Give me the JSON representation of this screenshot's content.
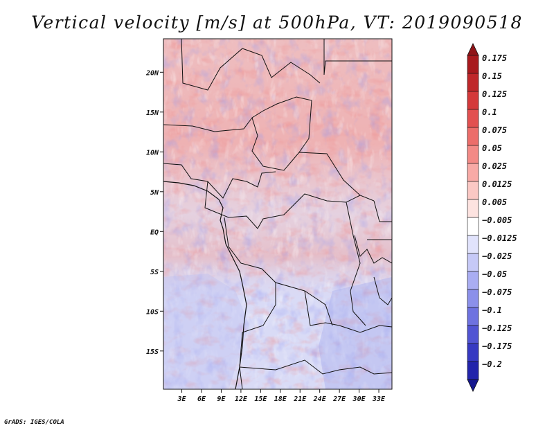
{
  "chart_data": {
    "type": "heatmap",
    "title": "Vertical velocity [m/s] at 500hPa, VT: 2019090518",
    "variable": "Vertical velocity",
    "units": "m/s",
    "level": "500hPa",
    "valid_time": "2019090518",
    "x_axis": {
      "ticks": [
        {
          "label": "3E",
          "value": 3
        },
        {
          "label": "6E",
          "value": 6
        },
        {
          "label": "9E",
          "value": 9
        },
        {
          "label": "12E",
          "value": 12
        },
        {
          "label": "15E",
          "value": 15
        },
        {
          "label": "18E",
          "value": 18
        },
        {
          "label": "21E",
          "value": 21
        },
        {
          "label": "24E",
          "value": 24
        },
        {
          "label": "27E",
          "value": 27
        },
        {
          "label": "30E",
          "value": 30
        },
        {
          "label": "33E",
          "value": 33
        }
      ],
      "range": [
        0.2,
        35.0
      ]
    },
    "y_axis": {
      "ticks": [
        {
          "label": "20N",
          "value": 20
        },
        {
          "label": "15N",
          "value": 15
        },
        {
          "label": "10N",
          "value": 10
        },
        {
          "label": "5N",
          "value": 5
        },
        {
          "label": "EQ",
          "value": 0
        },
        {
          "label": "5S",
          "value": -5
        },
        {
          "label": "10S",
          "value": -10
        },
        {
          "label": "15S",
          "value": -15
        }
      ],
      "range": [
        -19.8,
        24.2
      ]
    },
    "colorbar": {
      "levels": [
        {
          "label": "0.175",
          "color": "#a8191d"
        },
        {
          "label": "0.15",
          "color": "#bf272a"
        },
        {
          "label": "0.125",
          "color": "#d4393a"
        },
        {
          "label": "0.1",
          "color": "#e25050"
        },
        {
          "label": "0.075",
          "color": "#ec6d6a"
        },
        {
          "label": "0.05",
          "color": "#f38a86"
        },
        {
          "label": "0.025",
          "color": "#f8aaa6"
        },
        {
          "label": "0.0125",
          "color": "#fbc8c4"
        },
        {
          "label": "0.005",
          "color": "#fde3e0"
        },
        {
          "label": "−0.005",
          "color": "#ffffff"
        },
        {
          "label": "−0.0125",
          "color": "#e1e3fc"
        },
        {
          "label": "−0.025",
          "color": "#c6c9f7"
        },
        {
          "label": "−0.05",
          "color": "#a9adf2"
        },
        {
          "label": "−0.075",
          "color": "#8b90ea"
        },
        {
          "label": "−0.1",
          "color": "#6e72e0"
        },
        {
          "label": "−0.125",
          "color": "#5154d3"
        },
        {
          "label": "−0.175",
          "color": "#3639c2"
        },
        {
          "label": "−0.2",
          "color": "#2224ab"
        }
      ],
      "top_cap_color": "#901418",
      "bottom_cap_color": "#16188f"
    }
  },
  "footer": {
    "credit": "GrADS: IGES/COLA"
  }
}
